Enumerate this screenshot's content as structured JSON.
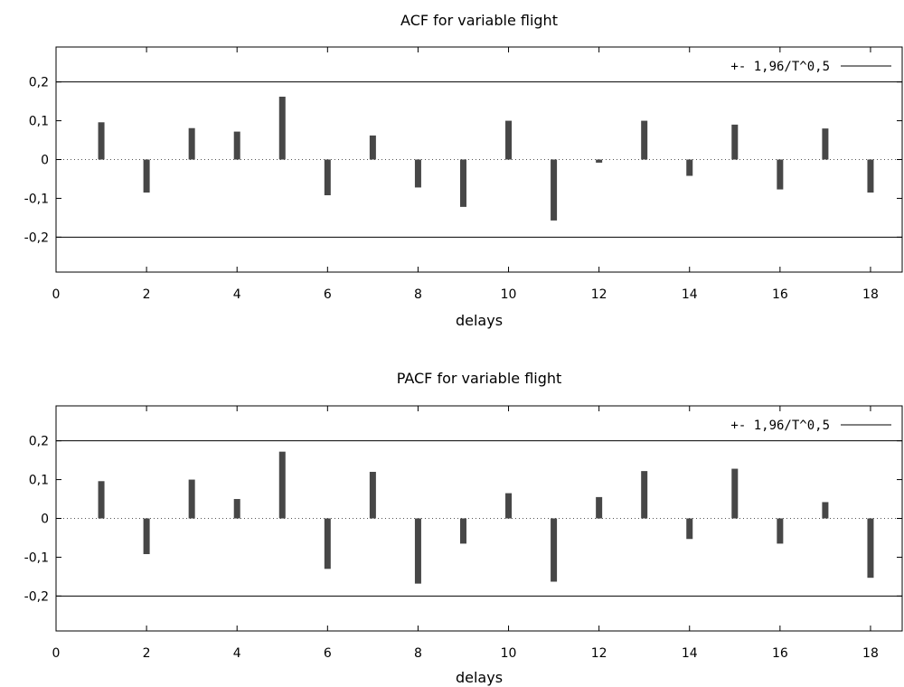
{
  "chart_data": [
    {
      "type": "bar",
      "title": "ACF for variable flight",
      "xlabel": "delays",
      "ylabel": "",
      "xlim": [
        0,
        18.7
      ],
      "ylim": [
        -0.29,
        0.29
      ],
      "xticks": [
        0,
        2,
        4,
        6,
        8,
        10,
        12,
        14,
        16,
        18
      ],
      "xtick_labels": [
        "0",
        "2",
        "4",
        "6",
        "8",
        "10",
        "12",
        "14",
        "16",
        "18"
      ],
      "yticks": [
        -0.2,
        -0.1,
        0,
        0.1,
        0.2
      ],
      "ytick_labels": [
        "-0,2",
        "-0,1",
        "0",
        "0,1",
        "0,2"
      ],
      "x": [
        1,
        2,
        3,
        4,
        5,
        6,
        7,
        8,
        9,
        10,
        11,
        12,
        13,
        14,
        15,
        16,
        17,
        18
      ],
      "values": [
        0.096,
        -0.085,
        0.081,
        0.072,
        0.162,
        -0.092,
        0.062,
        -0.072,
        -0.122,
        0.1,
        -0.157,
        -0.008,
        0.1,
        -0.042,
        0.09,
        -0.077,
        0.08,
        -0.085
      ],
      "bound": 0.2,
      "legend": {
        "label": "+- 1,96/T^0,5",
        "position": "top-right"
      },
      "grid": false
    },
    {
      "type": "bar",
      "title": "PACF for variable flight",
      "xlabel": "delays",
      "ylabel": "",
      "xlim": [
        0,
        18.7
      ],
      "ylim": [
        -0.29,
        0.29
      ],
      "xticks": [
        0,
        2,
        4,
        6,
        8,
        10,
        12,
        14,
        16,
        18
      ],
      "xtick_labels": [
        "0",
        "2",
        "4",
        "6",
        "8",
        "10",
        "12",
        "14",
        "16",
        "18"
      ],
      "yticks": [
        -0.2,
        -0.1,
        0,
        0.1,
        0.2
      ],
      "ytick_labels": [
        "-0,2",
        "-0,1",
        "0",
        "0,1",
        "0,2"
      ],
      "x": [
        1,
        2,
        3,
        4,
        5,
        6,
        7,
        8,
        9,
        10,
        11,
        12,
        13,
        14,
        15,
        16,
        17,
        18
      ],
      "values": [
        0.096,
        -0.092,
        0.1,
        0.05,
        0.172,
        -0.13,
        0.12,
        -0.168,
        -0.065,
        0.065,
        -0.163,
        0.055,
        0.122,
        -0.053,
        0.128,
        -0.065,
        0.042,
        -0.153
      ],
      "bound": 0.2,
      "legend": {
        "label": "+- 1,96/T^0,5",
        "position": "top-right"
      },
      "grid": false
    }
  ]
}
